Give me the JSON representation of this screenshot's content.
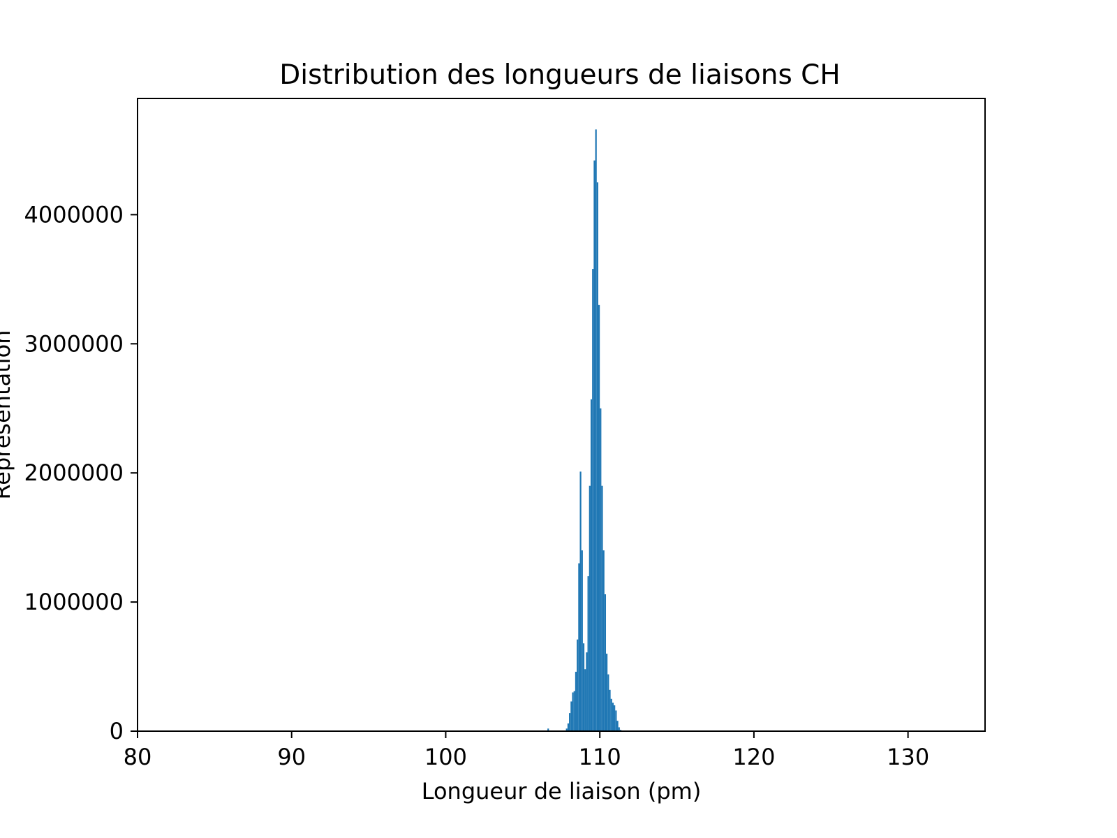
{
  "chart_data": {
    "type": "bar",
    "title": "Distribution des longueurs de liaisons CH",
    "xlabel": "Longueur de liaison (pm)",
    "ylabel": "Représentation",
    "xlim": [
      80,
      135
    ],
    "ylim": [
      0,
      4900000
    ],
    "xticks": [
      80,
      90,
      100,
      110,
      120,
      130
    ],
    "yticks": [
      0,
      1000000,
      2000000,
      3000000,
      4000000
    ],
    "xtick_labels": [
      "80",
      "90",
      "100",
      "110",
      "120",
      "130"
    ],
    "ytick_labels": [
      "0",
      "1000000",
      "2000000",
      "3000000",
      "4000000"
    ],
    "grid": false,
    "bar_color": "#1f77b4",
    "bin_width": 0.1,
    "bins": [
      {
        "x": 106.6,
        "value": 20000
      },
      {
        "x": 107.8,
        "value": 20000
      },
      {
        "x": 107.9,
        "value": 60000
      },
      {
        "x": 108.0,
        "value": 140000
      },
      {
        "x": 108.1,
        "value": 230000
      },
      {
        "x": 108.2,
        "value": 300000
      },
      {
        "x": 108.3,
        "value": 310000
      },
      {
        "x": 108.4,
        "value": 460000
      },
      {
        "x": 108.5,
        "value": 710000
      },
      {
        "x": 108.6,
        "value": 1300000
      },
      {
        "x": 108.7,
        "value": 2010000
      },
      {
        "x": 108.8,
        "value": 1400000
      },
      {
        "x": 108.9,
        "value": 680000
      },
      {
        "x": 109.0,
        "value": 480000
      },
      {
        "x": 109.1,
        "value": 610000
      },
      {
        "x": 109.2,
        "value": 1200000
      },
      {
        "x": 109.3,
        "value": 1900000
      },
      {
        "x": 109.4,
        "value": 2570000
      },
      {
        "x": 109.5,
        "value": 3580000
      },
      {
        "x": 109.6,
        "value": 4420000
      },
      {
        "x": 109.7,
        "value": 4660000
      },
      {
        "x": 109.8,
        "value": 4250000
      },
      {
        "x": 109.9,
        "value": 3300000
      },
      {
        "x": 110.0,
        "value": 2500000
      },
      {
        "x": 110.1,
        "value": 1900000
      },
      {
        "x": 110.2,
        "value": 1400000
      },
      {
        "x": 110.3,
        "value": 1060000
      },
      {
        "x": 110.4,
        "value": 600000
      },
      {
        "x": 110.5,
        "value": 440000
      },
      {
        "x": 110.6,
        "value": 320000
      },
      {
        "x": 110.7,
        "value": 250000
      },
      {
        "x": 110.8,
        "value": 220000
      },
      {
        "x": 110.9,
        "value": 200000
      },
      {
        "x": 111.0,
        "value": 160000
      },
      {
        "x": 111.1,
        "value": 80000
      },
      {
        "x": 111.2,
        "value": 30000
      },
      {
        "x": 111.3,
        "value": 10000
      }
    ]
  }
}
